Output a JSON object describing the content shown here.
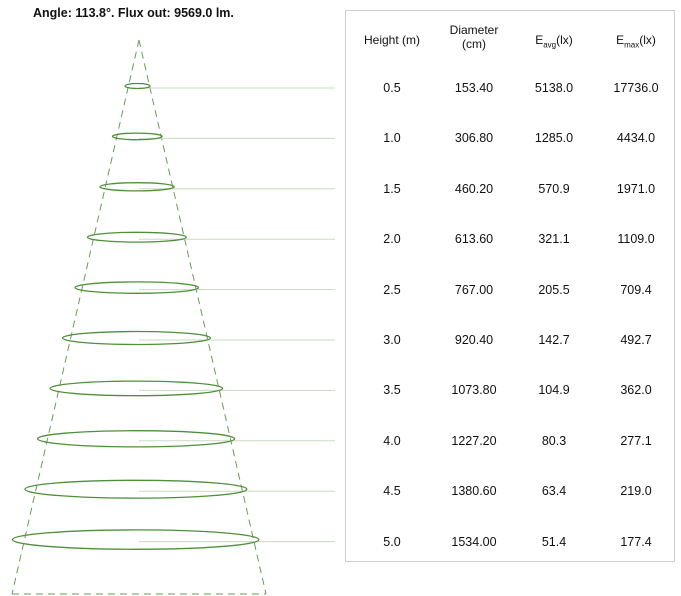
{
  "header": {
    "text": "Angle: 113.8°. Flux out: 9569.0 lm."
  },
  "table": {
    "col_height": "Height (m)",
    "col_diameter_line1": "Diameter",
    "col_diameter_line2": "(cm)",
    "col_eavg_main": "E",
    "col_eavg_sub": "avg",
    "col_eavg_unit": "(lx)",
    "col_emax_main": "E",
    "col_emax_sub": "max",
    "col_emax_unit": "(lx)",
    "rows": [
      {
        "height": "0.5",
        "diameter": "153.40",
        "eavg": "5138.0",
        "emax": "17736.0"
      },
      {
        "height": "1.0",
        "diameter": "306.80",
        "eavg": "1285.0",
        "emax": "4434.0"
      },
      {
        "height": "1.5",
        "diameter": "460.20",
        "eavg": "570.9",
        "emax": "1971.0"
      },
      {
        "height": "2.0",
        "diameter": "613.60",
        "eavg": "321.1",
        "emax": "1109.0"
      },
      {
        "height": "2.5",
        "diameter": "767.00",
        "eavg": "205.5",
        "emax": "709.4"
      },
      {
        "height": "3.0",
        "diameter": "920.40",
        "eavg": "142.7",
        "emax": "492.7"
      },
      {
        "height": "3.5",
        "diameter": "1073.80",
        "eavg": "104.9",
        "emax": "362.0"
      },
      {
        "height": "4.0",
        "diameter": "1227.20",
        "eavg": "80.3",
        "emax": "277.1"
      },
      {
        "height": "4.5",
        "diameter": "1380.60",
        "eavg": "63.4",
        "emax": "219.0"
      },
      {
        "height": "5.0",
        "diameter": "1534.00",
        "eavg": "51.4",
        "emax": "177.4"
      }
    ]
  },
  "colors": {
    "ellipse": "#4f8f3a",
    "cone": "#6a9a55",
    "leader": "#c9dcc0"
  }
}
